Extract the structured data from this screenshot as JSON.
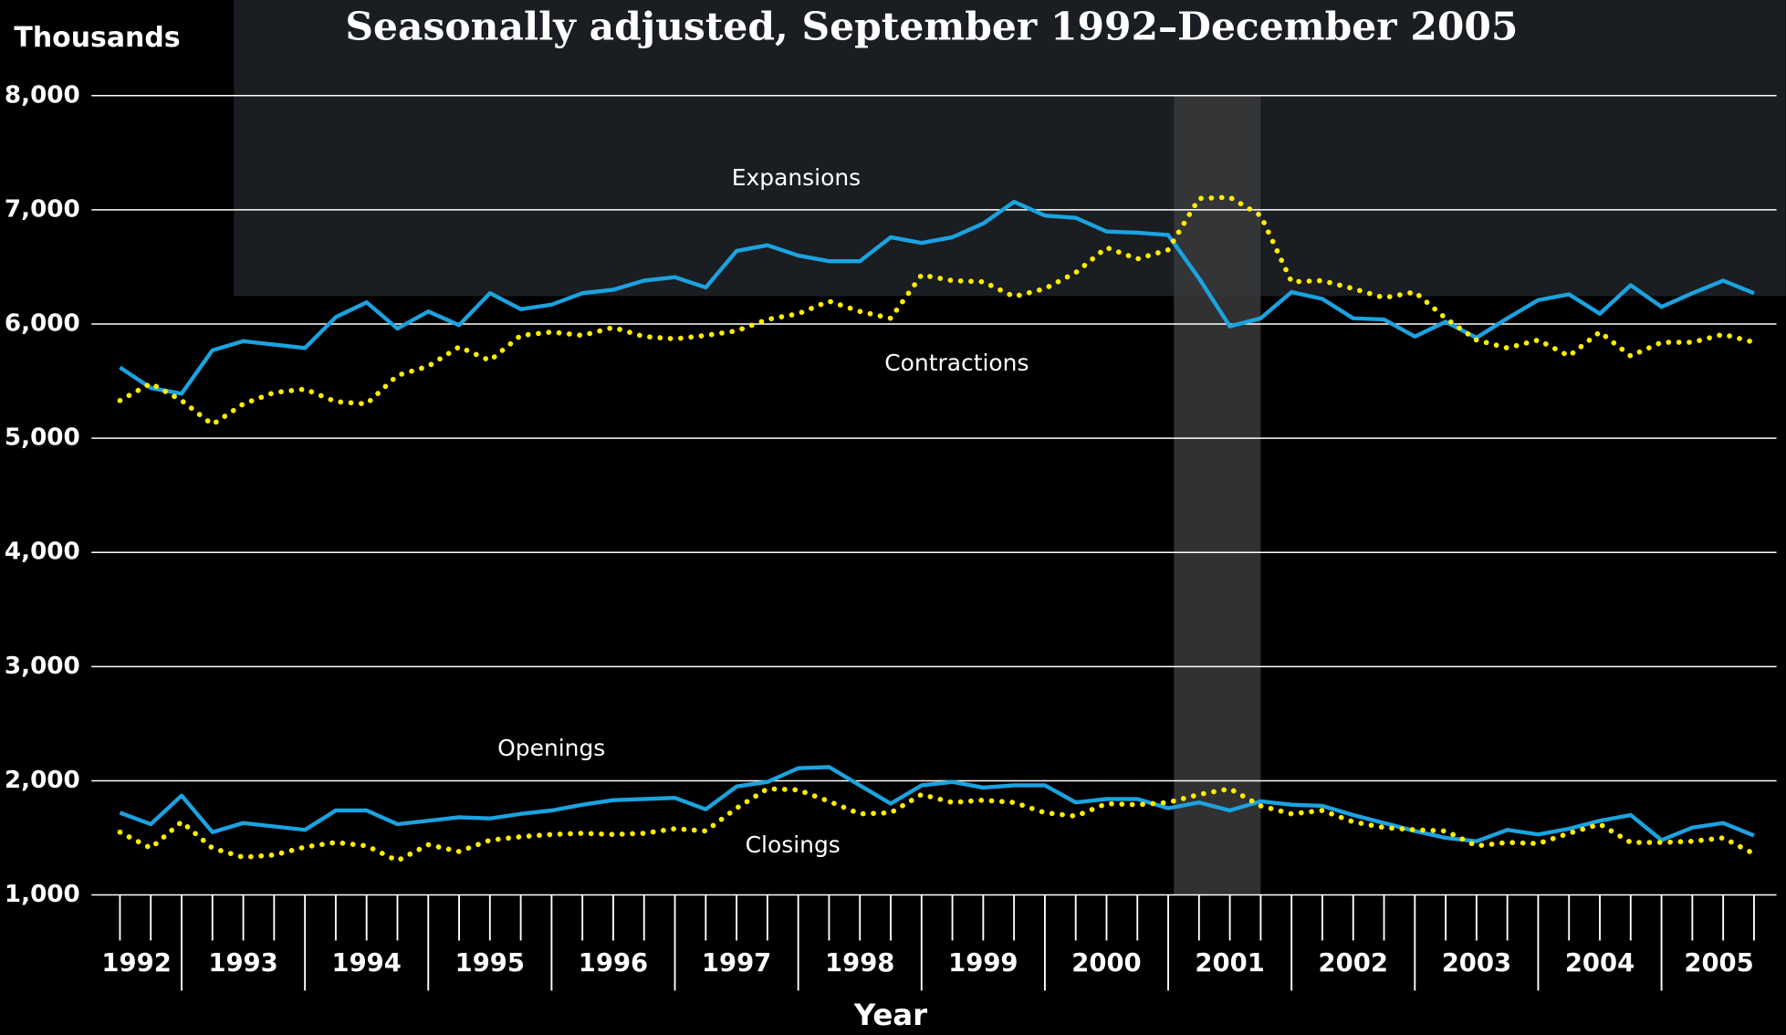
{
  "chart_data": {
    "type": "line",
    "title": "Seasonally adjusted, September 1992–December 2005",
    "y_axis_label": "Thousands",
    "x_axis_label": "Year",
    "year_labels": [
      "1992",
      "1993",
      "1994",
      "1995",
      "1996",
      "1997",
      "1998",
      "1999",
      "2000",
      "2001",
      "2002",
      "2003",
      "2004",
      "2005"
    ],
    "categories": [
      null,
      null,
      null,
      null,
      null,
      null,
      null,
      null,
      null,
      null,
      null,
      null,
      null,
      null,
      null,
      null,
      null,
      null,
      null,
      null,
      null,
      null,
      null,
      null,
      null,
      null,
      null,
      null,
      null,
      null,
      null,
      null,
      null,
      null,
      null,
      null,
      null,
      null,
      null,
      null,
      null,
      null,
      null,
      null,
      null,
      null,
      null,
      null,
      null,
      null,
      null,
      null,
      null,
      null
    ],
    "ylim": [
      1000,
      8000
    ],
    "yticks": [
      {
        "value": 1000,
        "label": "1,000"
      },
      {
        "value": 2000,
        "label": "2,000"
      },
      {
        "value": 3000,
        "label": "3,000"
      },
      {
        "value": 4000,
        "label": "4,000"
      },
      {
        "value": 5000,
        "label": "5,000"
      },
      {
        "value": 6000,
        "label": "6,000"
      },
      {
        "value": 7000,
        "label": "7,000"
      },
      {
        "value": 8000,
        "label": "8,000"
      }
    ],
    "grid": true,
    "series": [
      {
        "name": "Expansions",
        "color": "#1ba3e0",
        "dash": "solid",
        "values": [
          5620,
          5440,
          5390,
          5770,
          5850,
          5820,
          5790,
          6060,
          6190,
          5960,
          6110,
          5990,
          6270,
          6130,
          6170,
          6270,
          6300,
          6380,
          6410,
          6320,
          6640,
          6690,
          6600,
          6550,
          6550,
          6760,
          6710,
          6760,
          6880,
          7070,
          6950,
          6930,
          6810,
          6800,
          6780,
          6400,
          5980,
          6050,
          6280,
          6220,
          6050,
          6040,
          5890,
          6020,
          5880,
          6050,
          6210,
          6260,
          6090,
          6340,
          6150,
          6270,
          6380,
          6270
        ]
      },
      {
        "name": "Contractions",
        "color": "#ffed00",
        "dash": "dotted",
        "values": [
          5330,
          5480,
          5330,
          5120,
          5300,
          5400,
          5430,
          5320,
          5300,
          5550,
          5630,
          5800,
          5680,
          5900,
          5930,
          5900,
          5970,
          5890,
          5870,
          5900,
          5940,
          6040,
          6090,
          6200,
          6110,
          6050,
          6430,
          6380,
          6370,
          6240,
          6310,
          6450,
          6670,
          6570,
          6650,
          7100,
          7110,
          6950,
          6370,
          6380,
          6310,
          6230,
          6280,
          6050,
          5860,
          5790,
          5860,
          5720,
          5930,
          5720,
          5840,
          5840,
          5910,
          5840
        ]
      },
      {
        "name": "Openings",
        "color": "#1ba3e0",
        "dash": "solid",
        "values": [
          1720,
          1620,
          1870,
          1550,
          1630,
          1600,
          1570,
          1740,
          1740,
          1620,
          1650,
          1680,
          1670,
          1710,
          1740,
          1790,
          1830,
          1840,
          1850,
          1750,
          1950,
          1990,
          2110,
          2120,
          1960,
          1800,
          1960,
          1990,
          1940,
          1960,
          1960,
          1810,
          1840,
          1840,
          1760,
          1810,
          1740,
          1820,
          1790,
          1780,
          1700,
          1630,
          1560,
          1500,
          1470,
          1570,
          1530,
          1580,
          1650,
          1700,
          1480,
          1590,
          1630,
          1520
        ]
      },
      {
        "name": "Closings",
        "color": "#ffed00",
        "dash": "dotted",
        "values": [
          1550,
          1410,
          1640,
          1410,
          1330,
          1350,
          1420,
          1460,
          1430,
          1300,
          1440,
          1380,
          1480,
          1510,
          1530,
          1540,
          1530,
          1540,
          1580,
          1560,
          1760,
          1930,
          1920,
          1820,
          1710,
          1720,
          1880,
          1810,
          1830,
          1810,
          1720,
          1690,
          1800,
          1790,
          1810,
          1880,
          1930,
          1780,
          1710,
          1740,
          1640,
          1590,
          1570,
          1560,
          1430,
          1460,
          1450,
          1540,
          1620,
          1460,
          1460,
          1470,
          1500,
          1360
        ]
      }
    ]
  }
}
